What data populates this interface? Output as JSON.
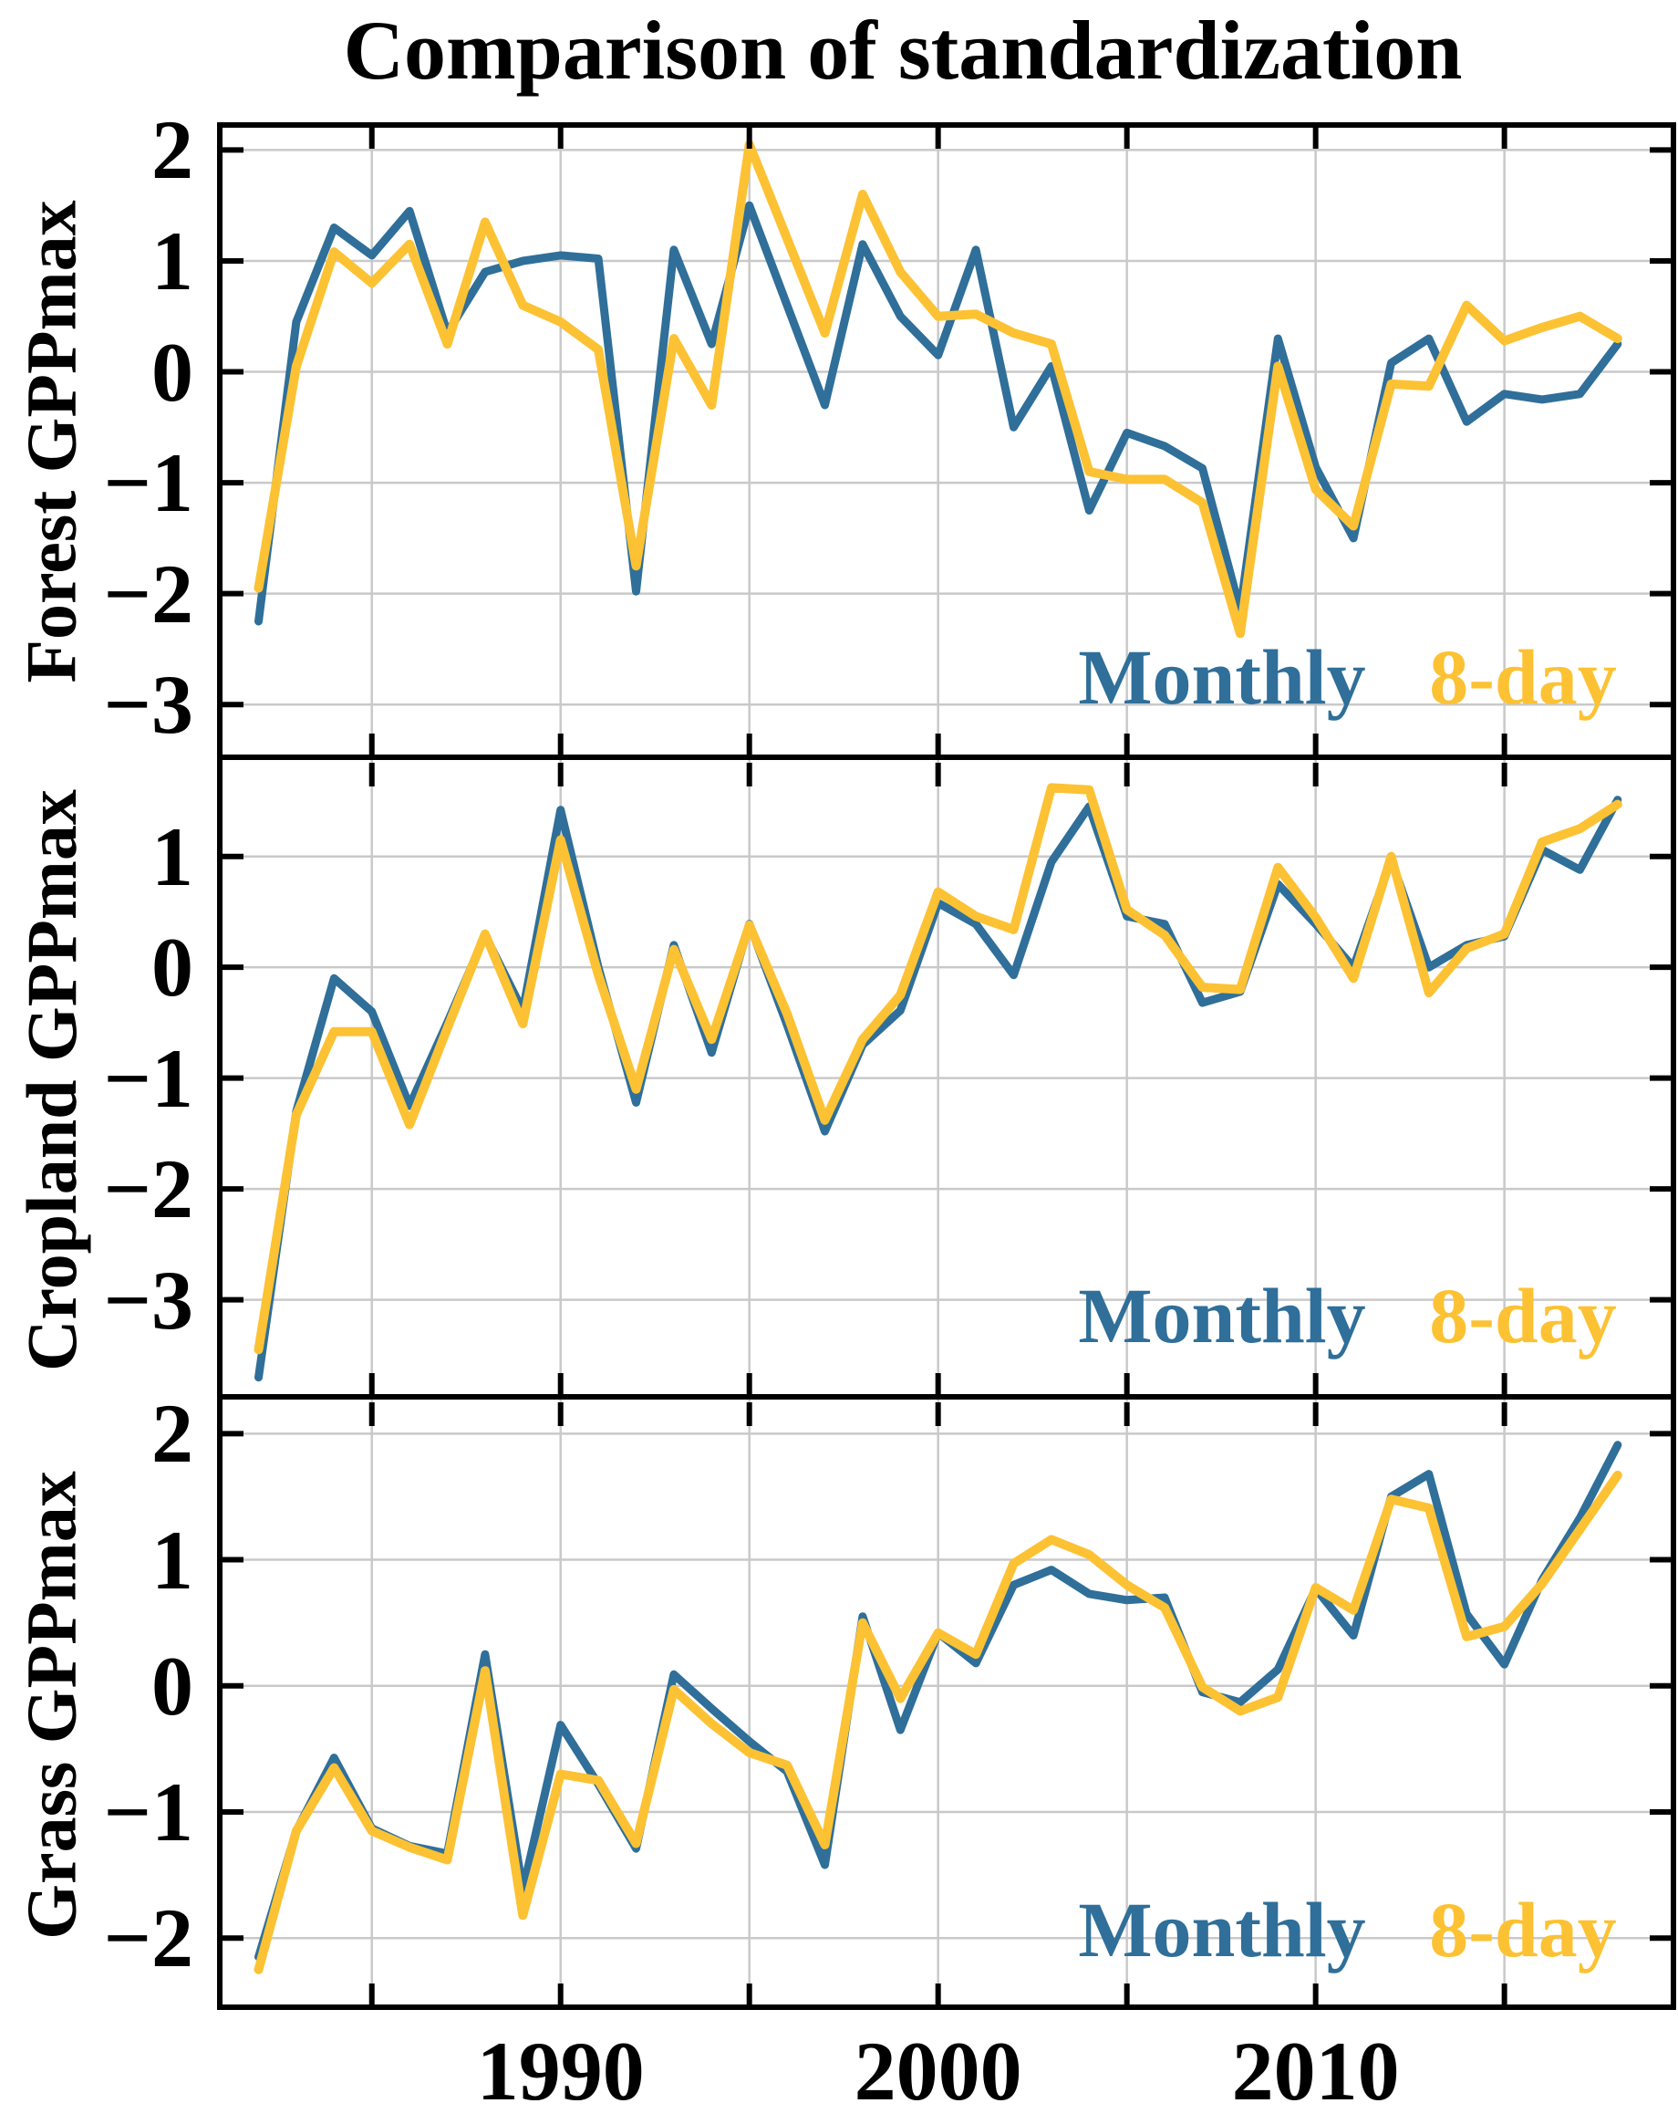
{
  "title": "Comparison of standardization",
  "legend": {
    "monthly": "Monthly",
    "eight_day": "8-day"
  },
  "colors": {
    "monthly": "#2F6F99",
    "eight_day": "#FCC233",
    "grid": "#C9C9C9",
    "axis": "#000000",
    "background": "#FFFFFF"
  },
  "x_axis": {
    "range": [
      1980.9,
      2019.55
    ],
    "grid_tick_years": [
      1985,
      1990,
      1995,
      2000,
      2005,
      2010,
      2015
    ],
    "labeled_ticks": [
      {
        "year": 1990,
        "label": "1990"
      },
      {
        "year": 2000,
        "label": "2000"
      },
      {
        "year": 2010,
        "label": "2010"
      }
    ]
  },
  "years": [
    1982,
    1983,
    1984,
    1985,
    1986,
    1987,
    1988,
    1989,
    1990,
    1991,
    1992,
    1993,
    1994,
    1995,
    1996,
    1997,
    1998,
    1999,
    2000,
    2001,
    2002,
    2003,
    2004,
    2005,
    2006,
    2007,
    2008,
    2009,
    2010,
    2011,
    2012,
    2013,
    2014,
    2015,
    2016,
    2017,
    2018
  ],
  "chart_data": [
    {
      "type": "line",
      "panel": "forest",
      "ylabel": "Forest GPPmax",
      "ylim": [
        -3.5,
        2.25
      ],
      "grid": true,
      "legend_position": "bottom-right",
      "yticks": [
        {
          "value": 2,
          "label": "2"
        },
        {
          "value": 1,
          "label": "1"
        },
        {
          "value": 0,
          "label": "0"
        },
        {
          "value": -1,
          "label": "−1"
        },
        {
          "value": -2,
          "label": "−2"
        },
        {
          "value": -3,
          "label": "−3"
        }
      ],
      "series": [
        {
          "name": "Monthly",
          "color": "#2F6F99",
          "width": 9,
          "values": [
            -2.25,
            0.45,
            1.3,
            1.05,
            1.45,
            0.35,
            0.9,
            1.0,
            1.05,
            1.02,
            -1.98,
            1.1,
            0.25,
            1.5,
            0.6,
            -0.3,
            1.15,
            0.5,
            0.15,
            1.1,
            -0.5,
            0.05,
            -1.25,
            -0.55,
            -0.67,
            -0.87,
            -2.15,
            0.3,
            -0.86,
            -1.5,
            0.08,
            0.3,
            -0.45,
            -0.2,
            -0.25,
            -0.2,
            0.25
          ]
        },
        {
          "name": "8-day",
          "color": "#FCC233",
          "width": 10,
          "values": [
            -1.95,
            0.05,
            1.08,
            0.8,
            1.15,
            0.25,
            1.35,
            0.6,
            0.45,
            0.2,
            -1.75,
            0.3,
            -0.3,
            2.05,
            1.2,
            0.35,
            1.6,
            0.9,
            0.5,
            0.52,
            0.35,
            0.25,
            -0.9,
            -0.97,
            -0.97,
            -1.18,
            -2.36,
            0.05,
            -1.06,
            -1.39,
            -0.11,
            -0.13,
            0.6,
            0.28,
            0.4,
            0.5,
            0.3
          ]
        }
      ]
    },
    {
      "type": "line",
      "panel": "cropland",
      "ylabel": "Cropland GPPmax",
      "ylim": [
        -3.9,
        1.87
      ],
      "grid": true,
      "legend_position": "bottom-right",
      "yticks": [
        {
          "value": 1,
          "label": "1"
        },
        {
          "value": 0,
          "label": "0"
        },
        {
          "value": -1,
          "label": "−1"
        },
        {
          "value": -2,
          "label": "−2"
        },
        {
          "value": -3,
          "label": "−3"
        }
      ],
      "series": [
        {
          "name": "Monthly",
          "color": "#2F6F99",
          "width": 9,
          "values": [
            -3.7,
            -1.3,
            -0.1,
            -0.4,
            -1.25,
            -0.5,
            0.29,
            -0.39,
            1.42,
            0.0,
            -1.22,
            0.2,
            -0.77,
            0.39,
            -0.52,
            -1.48,
            -0.7,
            -0.39,
            0.58,
            0.39,
            -0.07,
            0.95,
            1.45,
            0.46,
            0.39,
            -0.32,
            -0.22,
            0.75,
            0.39,
            0.0,
            0.97,
            0.0,
            0.2,
            0.28,
            1.06,
            0.88,
            1.51
          ]
        },
        {
          "name": "8-day",
          "color": "#FCC233",
          "width": 10,
          "values": [
            -3.45,
            -1.33,
            -0.58,
            -0.58,
            -1.42,
            -0.55,
            0.3,
            -0.51,
            1.15,
            -0.07,
            -1.1,
            0.16,
            -0.65,
            0.38,
            -0.42,
            -1.38,
            -0.65,
            -0.25,
            0.68,
            0.46,
            0.34,
            1.62,
            1.6,
            0.52,
            0.29,
            -0.18,
            -0.2,
            0.9,
            0.45,
            -0.1,
            1.0,
            -0.23,
            0.17,
            0.3,
            1.13,
            1.25,
            1.47
          ]
        }
      ]
    },
    {
      "type": "line",
      "panel": "grass",
      "ylabel": "Grass GPPmax",
      "ylim": [
        -2.57,
        2.27
      ],
      "grid": true,
      "legend_position": "bottom-right",
      "yticks": [
        {
          "value": 2,
          "label": "2"
        },
        {
          "value": 1,
          "label": "1"
        },
        {
          "value": 0,
          "label": "0"
        },
        {
          "value": -1,
          "label": "−1"
        },
        {
          "value": -2,
          "label": "−2"
        }
      ],
      "series": [
        {
          "name": "Monthly",
          "color": "#2F6F99",
          "width": 9,
          "values": [
            -2.15,
            -1.15,
            -0.57,
            -1.13,
            -1.27,
            -1.33,
            0.25,
            -1.62,
            -0.31,
            -0.78,
            -1.29,
            0.09,
            -0.18,
            -0.44,
            -0.68,
            -1.42,
            0.55,
            -0.35,
            0.42,
            0.18,
            0.8,
            0.92,
            0.73,
            0.68,
            0.7,
            -0.05,
            -0.13,
            0.13,
            0.77,
            0.4,
            1.5,
            1.68,
            0.57,
            0.17,
            0.84,
            1.33,
            1.91
          ]
        },
        {
          "name": "8-day",
          "color": "#FCC233",
          "width": 10,
          "values": [
            -2.25,
            -1.15,
            -0.65,
            -1.15,
            -1.28,
            -1.38,
            0.12,
            -1.82,
            -0.7,
            -0.75,
            -1.25,
            -0.03,
            -0.3,
            -0.53,
            -0.63,
            -1.26,
            0.5,
            -0.1,
            0.42,
            0.25,
            0.97,
            1.16,
            1.04,
            0.8,
            0.62,
            -0.01,
            -0.2,
            -0.09,
            0.78,
            0.6,
            1.48,
            1.41,
            0.39,
            0.47,
            0.81,
            1.24,
            1.67
          ]
        }
      ]
    }
  ]
}
